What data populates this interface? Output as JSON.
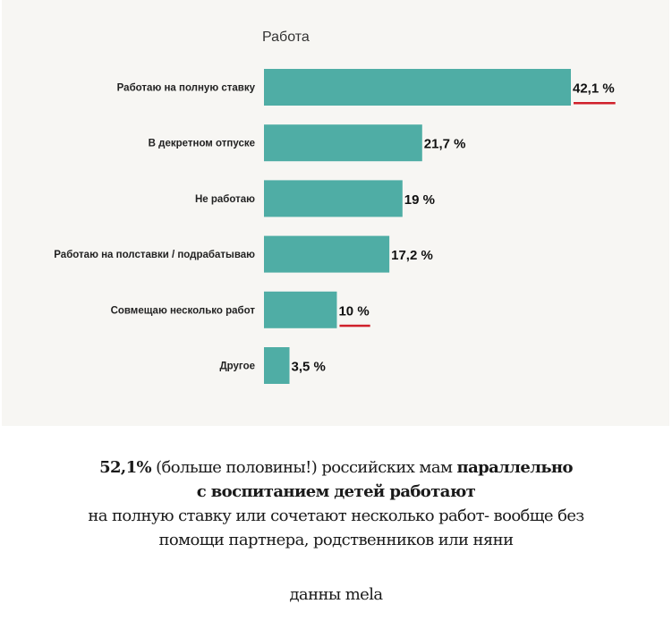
{
  "chart_data": {
    "type": "bar",
    "orientation": "horizontal",
    "title": "Работа",
    "categories": [
      "Работаю на полную ставку",
      "В декретном отпуске",
      "Не работаю",
      "Работаю на полставки / подрабатываю",
      "Совмещаю несколько работ",
      "Другое"
    ],
    "values": [
      42.1,
      21.7,
      19,
      17.2,
      10,
      3.5
    ],
    "value_labels": [
      "42,1 %",
      "21,7 %",
      "19 %",
      "17,2 %",
      "10 %",
      "3,5 %"
    ],
    "highlighted": [
      true,
      false,
      false,
      false,
      true,
      false
    ],
    "xlabel": "",
    "ylabel": "",
    "xlim": [
      0,
      45
    ],
    "grid": false,
    "colors": {
      "bar": "#4fada5",
      "highlight": "#d0202a",
      "background": "#f7f6f3"
    }
  },
  "caption": {
    "line1_bold_start": "52,1%",
    "line1_normal": " (больше половины!) российских мам ",
    "line1_bold_end": "параллельно",
    "line2_bold": "с воспитанием детей работают",
    "line3": "на полную ставку или сочетают несколько работ- вообще без",
    "line4": "помощи партнера, родственников или няни",
    "source": "данны mela"
  }
}
